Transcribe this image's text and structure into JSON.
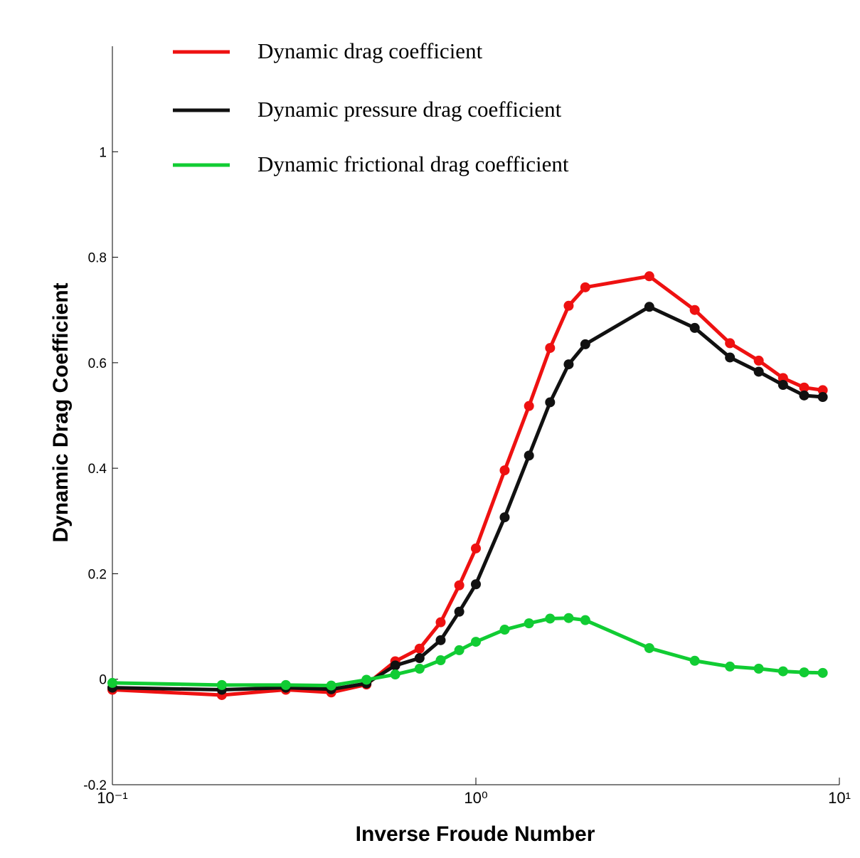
{
  "chart_data": {
    "type": "line",
    "xlabel": "Inverse Froude Number",
    "ylabel": "Dynamic Drag Coefficient",
    "x": [
      0.1,
      0.2,
      0.3,
      0.4,
      0.5,
      0.6,
      0.7,
      0.8,
      0.9,
      1.0,
      1.2,
      1.4,
      1.6,
      1.8,
      2.0,
      3.0,
      4.0,
      5.0,
      6.0,
      7.0,
      8.0,
      9.0
    ],
    "series": [
      {
        "name": "Dynamic drag coefficient",
        "color": "#ee1111",
        "values": [
          -0.02,
          -0.03,
          -0.02,
          -0.025,
          -0.01,
          0.034,
          0.058,
          0.108,
          0.178,
          0.248,
          0.396,
          0.518,
          0.628,
          0.708,
          0.743,
          0.764,
          0.7,
          0.637,
          0.604,
          0.571,
          0.553,
          0.548
        ]
      },
      {
        "name": "Dynamic pressure drag coefficient",
        "color": "#111111",
        "values": [
          -0.016,
          -0.02,
          -0.016,
          -0.019,
          -0.008,
          0.026,
          0.04,
          0.074,
          0.128,
          0.18,
          0.307,
          0.424,
          0.525,
          0.597,
          0.635,
          0.706,
          0.666,
          0.61,
          0.583,
          0.558,
          0.538,
          0.535
        ]
      },
      {
        "name": "Dynamic frictional drag coefficient",
        "color": "#11cc33",
        "values": [
          -0.007,
          -0.011,
          -0.011,
          -0.012,
          -0.001,
          0.009,
          0.02,
          0.036,
          0.055,
          0.071,
          0.094,
          0.106,
          0.115,
          0.116,
          0.112,
          0.059,
          0.035,
          0.024,
          0.02,
          0.015,
          0.013,
          0.012
        ]
      }
    ],
    "xscale": "log",
    "xlim": [
      0.1,
      10
    ],
    "xticks": [
      {
        "value": 0.1,
        "label": "10⁻¹"
      },
      {
        "value": 1,
        "label": "10⁰"
      },
      {
        "value": 10,
        "label": "10¹"
      }
    ],
    "ylim": [
      -0.2,
      1.2
    ],
    "yticks": [
      -0.2,
      0,
      0.2,
      0.4,
      0.6,
      0.8,
      1
    ],
    "grid": false,
    "legend": "top"
  }
}
